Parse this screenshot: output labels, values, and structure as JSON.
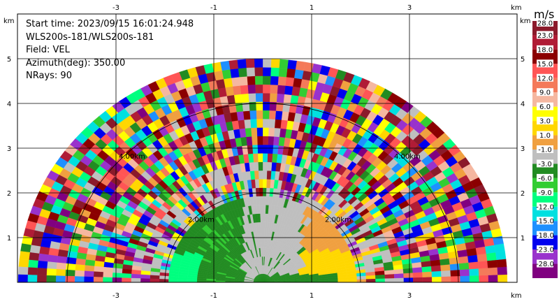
{
  "info": {
    "start_time": "Start time: 2023/09/15 16:01:24.948",
    "instrument": "WLS200s-181/WLS200s-181",
    "field": "Field: VEL",
    "azimuth": "Azimuth(deg): 350.00",
    "nrays": "NRays: 90"
  },
  "colorbar": {
    "unit": "m/s",
    "levels": [
      "28.0",
      "23.0",
      "18.0",
      "15.0",
      "12.0",
      "9.0",
      "6.0",
      "3.0",
      "1.0",
      "-1.0",
      "-3.0",
      "-6.0",
      "-9.0",
      "-12.0",
      "-15.0",
      "-18.0",
      "-23.0",
      "-28.0"
    ],
    "colors": [
      "#8b1a2b",
      "#b01c36",
      "#8b0000",
      "#ff5555",
      "#f47a5a",
      "#f5b7a0",
      "#ffff00",
      "#ffd700",
      "#f0a040",
      "#bfbfbf",
      "#228b22",
      "#32cd32",
      "#00ff7f",
      "#00e0e0",
      "#1e90ff",
      "#0000ee",
      "#9932cc",
      "#800080"
    ]
  },
  "axes": {
    "x_unit": "km",
    "y_unit": "km",
    "x_ticks": [
      "-3",
      "-1",
      "1",
      "3"
    ],
    "y_ticks": [
      "1",
      "2",
      "3",
      "4",
      "5"
    ]
  },
  "range_rings": [
    "2.00km",
    "4.00km"
  ],
  "chart_data": {
    "type": "heatmap",
    "title": "",
    "field": "VEL",
    "units": "m/s",
    "scan": "RHI-like half-circle (sector display)",
    "x_values_km": [
      -3,
      -1,
      1,
      3
    ],
    "y_values_km": [
      1,
      2,
      3,
      4,
      5
    ],
    "xlim": [
      -5.6,
      4.4
    ],
    "ylim": [
      0,
      5.8
    ],
    "max_range_km": 5.0,
    "range_rings_km": [
      2.0,
      4.0
    ],
    "grid": true,
    "color_levels": [
      -28,
      -23,
      -18,
      -15,
      -12,
      -9,
      -6,
      -3,
      -1,
      1,
      3,
      6,
      9,
      12,
      15,
      18,
      23,
      28
    ],
    "features": [
      {
        "region": "left low",
        "range_km": [
          0,
          1.8
        ],
        "velocity_mps": -6,
        "color": "green"
      },
      {
        "region": "left lower cyan",
        "range_km": [
          0,
          1.0
        ],
        "velocity_mps": -9,
        "color": "cyan-green"
      },
      {
        "region": "center",
        "range_km": [
          0,
          2.0
        ],
        "velocity_mps": 0,
        "color": "gray"
      },
      {
        "region": "right low",
        "range_km": [
          0,
          1.8
        ],
        "velocity_mps": 4,
        "color": "orange/yellow"
      },
      {
        "region": "outer",
        "range_km": [
          2.0,
          5.0
        ],
        "velocity_mps": "noise",
        "color": "mixed"
      }
    ]
  }
}
